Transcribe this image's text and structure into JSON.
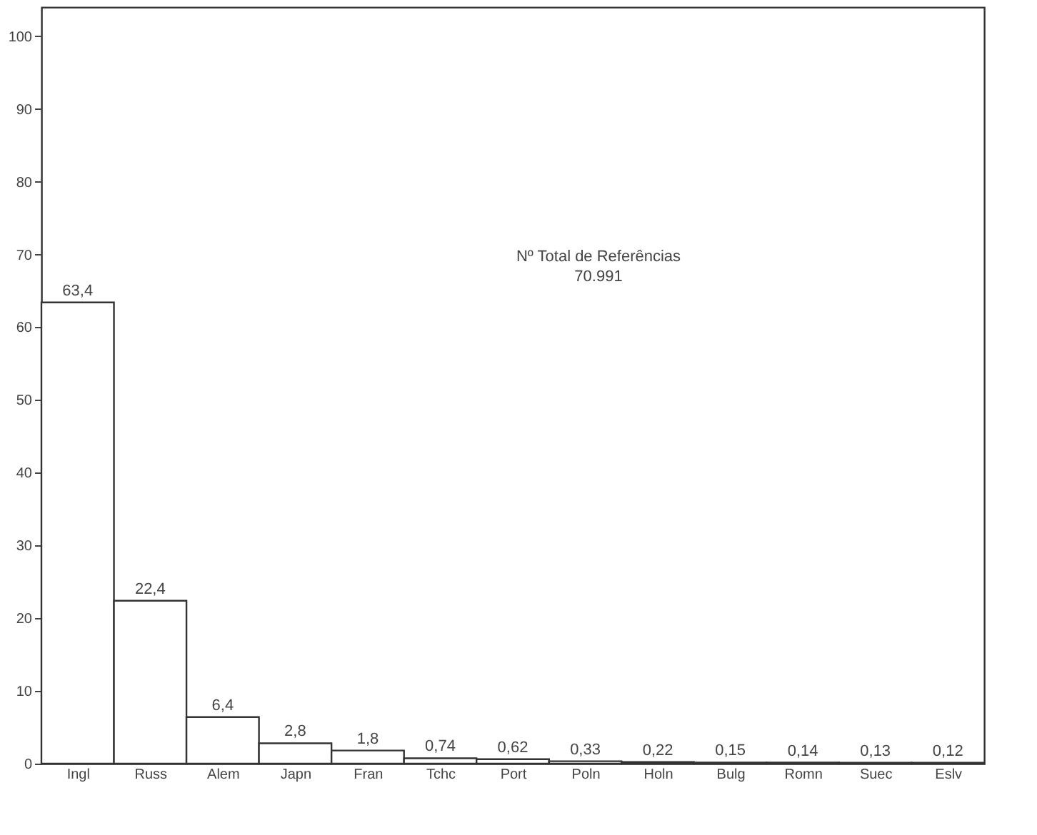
{
  "chart_data": {
    "type": "bar",
    "categories": [
      "Ingl",
      "Russ",
      "Alem",
      "Japn",
      "Fran",
      "Tchc",
      "Port",
      "Poln",
      "Holn",
      "Bulg",
      "Romn",
      "Suec",
      "Eslv"
    ],
    "values": [
      63.4,
      22.4,
      6.4,
      2.8,
      1.8,
      0.74,
      0.62,
      0.33,
      0.22,
      0.15,
      0.14,
      0.13,
      0.12
    ],
    "value_labels": [
      "63,4",
      "22,4",
      "6,4",
      "2,8",
      "1,8",
      "0,74",
      "0,62",
      "0,33",
      "0,22",
      "0,15",
      "0,14",
      "0,13",
      "0,12"
    ],
    "color": "#ffffff",
    "ylim": [
      0,
      104
    ],
    "yticks": [
      0,
      10,
      20,
      30,
      40,
      50,
      60,
      70,
      80,
      90,
      100
    ],
    "annotations": [
      "Nº Total de Referências",
      "70.991"
    ],
    "grid": false
  }
}
